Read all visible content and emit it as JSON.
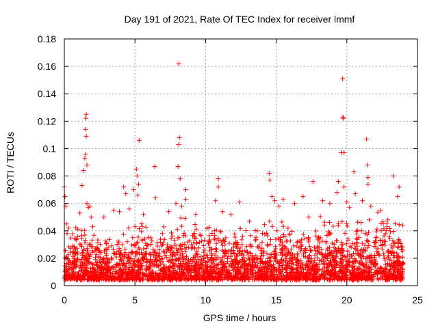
{
  "chart_data": {
    "type": "scatter",
    "title": "Day 191 of 2021, Rate Of TEC Index for receiver lmmf",
    "xlabel": "GPS time / hours",
    "ylabel": "ROTI / TECUs",
    "xlim": [
      0,
      25
    ],
    "ylim": [
      0,
      0.18
    ],
    "x_ticks": [
      0,
      5,
      10,
      15,
      20,
      25
    ],
    "x_tick_labels": [
      "0",
      "5",
      "10",
      "15",
      "20",
      "25"
    ],
    "y_ticks": [
      0,
      0.02,
      0.04,
      0.06,
      0.08,
      0.1,
      0.12,
      0.14,
      0.16,
      0.18
    ],
    "y_tick_labels": [
      "0",
      "0.02",
      "0.04",
      "0.06",
      "0.08",
      "0.1",
      "0.12",
      "0.14",
      "0.16",
      "0.18"
    ],
    "grid": true,
    "marker": "+",
    "color": "#ff0000",
    "series": [
      {
        "name": "ROTI",
        "points": [
          [
            0.0,
            0.072
          ],
          [
            0.05,
            0.065
          ],
          [
            0.1,
            0.058
          ],
          [
            0.15,
            0.045
          ],
          [
            0.2,
            0.038
          ],
          [
            0.3,
            0.042
          ],
          [
            1.1,
            0.053
          ],
          [
            1.25,
            0.073
          ],
          [
            1.35,
            0.084
          ],
          [
            1.45,
            0.093
          ],
          [
            1.5,
            0.096
          ],
          [
            1.5,
            0.114
          ],
          [
            1.52,
            0.122
          ],
          [
            1.55,
            0.125
          ],
          [
            1.55,
            0.109
          ],
          [
            1.6,
            0.088
          ],
          [
            1.6,
            0.06
          ],
          [
            1.7,
            0.057
          ],
          [
            1.8,
            0.058
          ],
          [
            1.9,
            0.05
          ],
          [
            2.0,
            0.043
          ],
          [
            2.8,
            0.05
          ],
          [
            3.5,
            0.055
          ],
          [
            3.9,
            0.054
          ],
          [
            4.2,
            0.072
          ],
          [
            4.35,
            0.067
          ],
          [
            4.6,
            0.056
          ],
          [
            4.9,
            0.07
          ],
          [
            5.1,
            0.085
          ],
          [
            5.15,
            0.08
          ],
          [
            5.25,
            0.074
          ],
          [
            5.3,
            0.106
          ],
          [
            5.2,
            0.066
          ],
          [
            5.6,
            0.052
          ],
          [
            6.4,
            0.087
          ],
          [
            6.45,
            0.064
          ],
          [
            7.4,
            0.054
          ],
          [
            7.9,
            0.06
          ],
          [
            8.05,
            0.087
          ],
          [
            8.1,
            0.103
          ],
          [
            8.15,
            0.108
          ],
          [
            8.1,
            0.162
          ],
          [
            8.2,
            0.078
          ],
          [
            8.3,
            0.058
          ],
          [
            8.6,
            0.063
          ],
          [
            8.6,
            0.07
          ],
          [
            9.3,
            0.052
          ],
          [
            10.7,
            0.062
          ],
          [
            10.9,
            0.078
          ],
          [
            10.9,
            0.072
          ],
          [
            11.2,
            0.054
          ],
          [
            11.8,
            0.052
          ],
          [
            12.4,
            0.061
          ],
          [
            13.1,
            0.047
          ],
          [
            14.5,
            0.082
          ],
          [
            14.55,
            0.077
          ],
          [
            14.7,
            0.065
          ],
          [
            14.9,
            0.062
          ],
          [
            15.2,
            0.058
          ],
          [
            15.5,
            0.063
          ],
          [
            16.3,
            0.06
          ],
          [
            16.9,
            0.065
          ],
          [
            17.3,
            0.05
          ],
          [
            17.6,
            0.076
          ],
          [
            18.3,
            0.062
          ],
          [
            18.8,
            0.06
          ],
          [
            19.3,
            0.068
          ],
          [
            19.4,
            0.076
          ],
          [
            19.6,
            0.097
          ],
          [
            19.7,
            0.151
          ],
          [
            19.72,
            0.123
          ],
          [
            19.75,
            0.122
          ],
          [
            19.8,
            0.097
          ],
          [
            19.8,
            0.072
          ],
          [
            20.0,
            0.061
          ],
          [
            20.2,
            0.057
          ],
          [
            20.5,
            0.083
          ],
          [
            20.6,
            0.067
          ],
          [
            21.1,
            0.062
          ],
          [
            21.4,
            0.107
          ],
          [
            21.45,
            0.088
          ],
          [
            21.5,
            0.079
          ],
          [
            21.5,
            0.074
          ],
          [
            21.7,
            0.058
          ],
          [
            22.4,
            0.055
          ],
          [
            22.9,
            0.048
          ],
          [
            23.3,
            0.08
          ],
          [
            23.6,
            0.065
          ],
          [
            23.7,
            0.072
          ]
        ],
        "dense_band": [
          {
            "x0": 0.0,
            "x1": 2.0,
            "ymin": 0.004,
            "ymax": 0.045
          },
          {
            "x0": 2.0,
            "x1": 4.0,
            "ymin": 0.004,
            "ymax": 0.04
          },
          {
            "x0": 4.0,
            "x1": 6.0,
            "ymin": 0.004,
            "ymax": 0.048
          },
          {
            "x0": 6.0,
            "x1": 8.0,
            "ymin": 0.004,
            "ymax": 0.046
          },
          {
            "x0": 8.0,
            "x1": 10.0,
            "ymin": 0.004,
            "ymax": 0.05
          },
          {
            "x0": 10.0,
            "x1": 12.0,
            "ymin": 0.004,
            "ymax": 0.046
          },
          {
            "x0": 12.0,
            "x1": 14.0,
            "ymin": 0.004,
            "ymax": 0.044
          },
          {
            "x0": 14.0,
            "x1": 16.0,
            "ymin": 0.004,
            "ymax": 0.05
          },
          {
            "x0": 16.0,
            "x1": 18.0,
            "ymin": 0.004,
            "ymax": 0.046
          },
          {
            "x0": 18.0,
            "x1": 20.0,
            "ymin": 0.004,
            "ymax": 0.052
          },
          {
            "x0": 20.0,
            "x1": 22.0,
            "ymin": 0.004,
            "ymax": 0.05
          },
          {
            "x0": 22.0,
            "x1": 24.0,
            "ymin": 0.004,
            "ymax": 0.055
          }
        ]
      }
    ]
  }
}
